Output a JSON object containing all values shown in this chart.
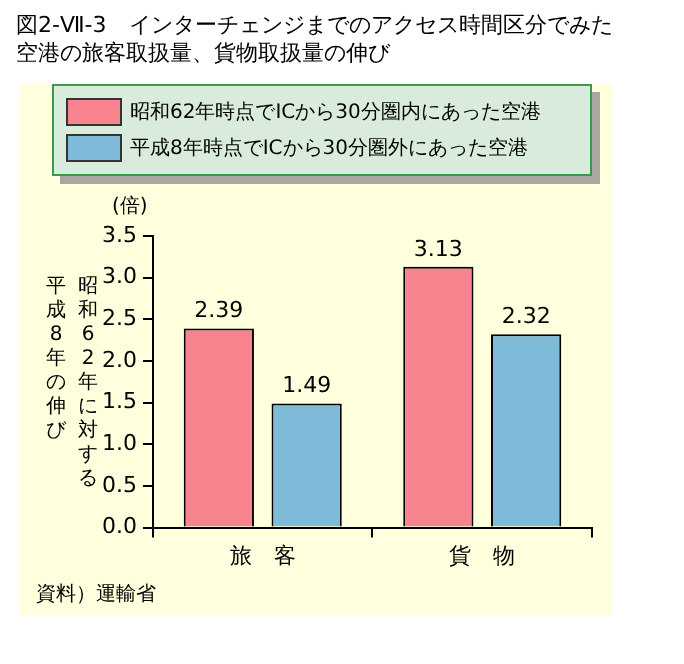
{
  "chart_data": {
    "type": "bar",
    "title": "図2-Ⅶ-3　インターチェンジまでのアクセス時間区分でみた空港の旅客取扱量、貨物取扱量の伸び",
    "ylabel": "昭和62年に対する平成8年の伸び",
    "annotations": [
      "(倍)",
      "資料）運輸省"
    ],
    "categories": [
      "旅　客",
      "貨　物"
    ],
    "series": [
      {
        "name": "昭和62年時点でICから30分圏内にあった空港",
        "color": "#f7838f",
        "values": [
          2.39,
          3.13
        ]
      },
      {
        "name": "平成8年時点でICから30分圏外にあった空港",
        "color": "#80bad9",
        "values": [
          1.49,
          2.32
        ]
      }
    ],
    "ylim": [
      0,
      3.5
    ],
    "yticks": [
      {
        "value": 0,
        "label": "0.0"
      },
      {
        "value": 0.5,
        "label": "0.5"
      },
      {
        "value": 1,
        "label": "1.0"
      },
      {
        "value": 1.5,
        "label": "1.5"
      },
      {
        "value": 2,
        "label": "2.0"
      },
      {
        "value": 2.5,
        "label": "2.5"
      },
      {
        "value": 3,
        "label": "3.0"
      },
      {
        "value": 3.5,
        "label": "3.5"
      }
    ],
    "data_labels": true,
    "legend": "top"
  }
}
